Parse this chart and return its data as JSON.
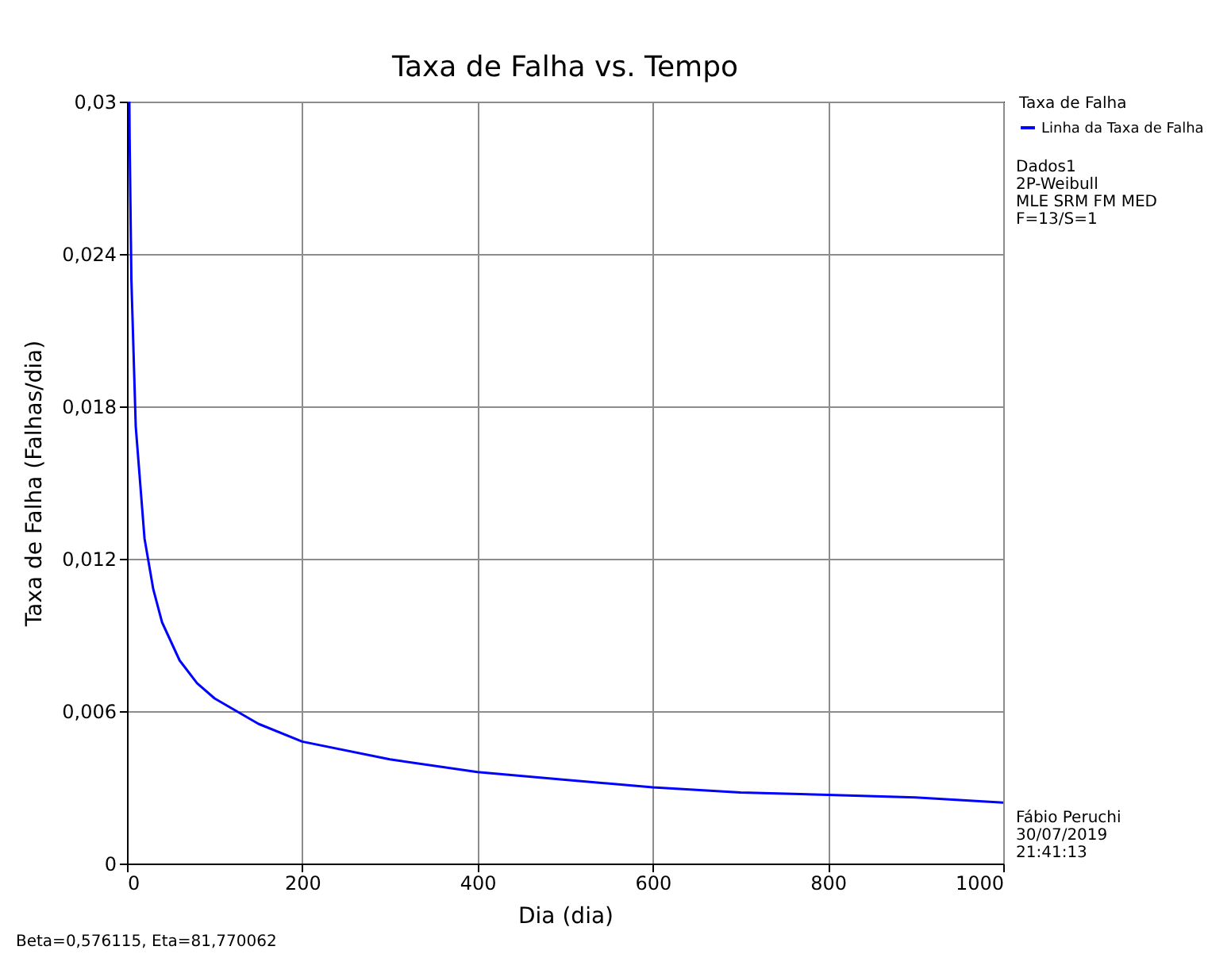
{
  "chart_data": {
    "type": "line",
    "title": "Taxa de Falha vs. Tempo",
    "xlabel": "Dia (dia)",
    "ylabel": "Taxa de Falha (Falhas/dia)",
    "legend_title": "Taxa de Falha",
    "series": [
      {
        "name": "Linha da Taxa de Falha",
        "color": "#0000ff",
        "x": [
          2.7,
          3,
          5,
          10,
          20,
          30,
          40,
          60,
          80,
          100,
          150,
          200,
          300,
          400,
          500,
          600,
          700,
          800,
          900,
          1000
        ],
        "values": [
          0.03,
          0.0286,
          0.023,
          0.0172,
          0.0128,
          0.0108,
          0.0095,
          0.008,
          0.0071,
          0.0065,
          0.0055,
          0.0048,
          0.0041,
          0.0036,
          0.0033,
          0.003,
          0.0028,
          0.0027,
          0.0026,
          0.0024
        ]
      }
    ],
    "xlim": [
      0,
      1000
    ],
    "xticks": [
      0,
      200,
      400,
      600,
      800,
      1000
    ],
    "ylim": [
      0,
      0.03
    ],
    "yticks": [
      0,
      {
        "value": 0.006,
        "label": "0,006"
      },
      {
        "value": 0.012,
        "label": "0,012"
      },
      {
        "value": 0.018,
        "label": "0,018"
      },
      {
        "value": 0.024,
        "label": "0,024"
      },
      {
        "value": 0.03,
        "label": "0,03"
      }
    ],
    "grid": true,
    "legend": "right",
    "marker": "none",
    "line_style": "solid",
    "annotations": [
      "Dados1",
      "2P-Weibull",
      "MLE SRM FM MED",
      "F=13/S=1",
      "Fábio  Peruchi",
      "30/07/2019",
      "21:41:13",
      "Beta=0,576115, Eta=81,770062"
    ]
  }
}
